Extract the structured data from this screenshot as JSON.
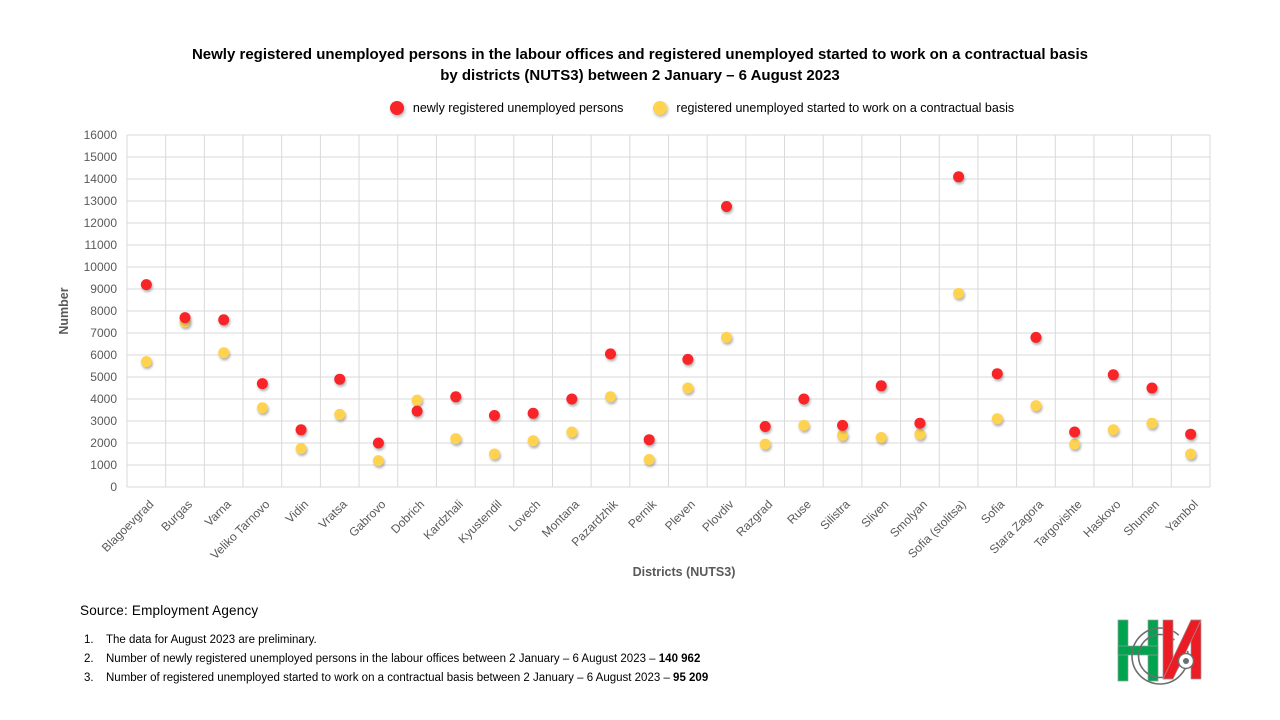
{
  "title": {
    "line1": "Newly registered unemployed persons in the labour offices and registered unemployed started to work on a contractual basis",
    "line2": "by districts (NUTS3) between 2 January – 6 August 2023"
  },
  "legend": {
    "items": [
      {
        "label": "newly registered unemployed  persons",
        "color": "#F82428"
      },
      {
        "label": "registered unemployed  started to work on  a contractual basis",
        "color": "#FFD24F"
      }
    ]
  },
  "chart_data": {
    "type": "scatter",
    "title": "Newly registered unemployed persons in the labour offices and registered unemployed started to work on a contractual basis by districts (NUTS3) between 2 January – 6 August 2023",
    "xlabel": "Districts (NUTS3)",
    "ylabel": "Number",
    "ylim": [
      0,
      16000
    ],
    "ytick_step": 1000,
    "grid": true,
    "legend_position": "top",
    "grid_color": "#D9D9D9",
    "tick_label_color": "#595959",
    "axis_title_color": "#595959",
    "categories": [
      "Blagoevgrad",
      "Burgas",
      "Varna",
      "Veliko Tarnovo",
      "Vidin",
      "Vratsa",
      "Gabrovo",
      "Dobrich",
      "Kardzhali",
      "Kyustendil",
      "Lovech",
      "Montana",
      "Pazardzhik",
      "Pernik",
      "Pleven",
      "Plovdiv",
      "Razgrad",
      "Ruse",
      "Silistra",
      "Sliven",
      "Smolyan",
      "Sofia (stolitsa)",
      "Sofia",
      "Stara Zagora",
      "Targovishte",
      "Haskovo",
      "Shumen",
      "Yambol"
    ],
    "series": [
      {
        "name": "newly registered unemployed persons",
        "color": "#F82428",
        "values": [
          9200,
          7700,
          7600,
          4700,
          2600,
          4900,
          2000,
          3450,
          4100,
          3250,
          3350,
          4000,
          6050,
          2150,
          5800,
          12750,
          2750,
          4000,
          2800,
          4600,
          2900,
          14100,
          5150,
          6800,
          2500,
          5100,
          4500,
          2400
        ]
      },
      {
        "name": "registered unemployed started to work on a contractual basis",
        "color": "#FFD24F",
        "values": [
          5700,
          7500,
          6100,
          3600,
          1750,
          3300,
          1200,
          3950,
          2200,
          1500,
          2100,
          2500,
          4100,
          1250,
          4500,
          6800,
          1950,
          2800,
          2350,
          2250,
          2400,
          8800,
          3100,
          3700,
          1950,
          2600,
          2900,
          1500
        ]
      }
    ]
  },
  "footer": {
    "source": "Source:  Employment  Agency",
    "notes": [
      {
        "num": "1.",
        "text": "The data for August 2023 are preliminary.",
        "bold": ""
      },
      {
        "num": "2.",
        "text": "Number  of newly registered unemployed  persons in the  labour offices between  2 January – 6 August 2023 – ",
        "bold": "140 962"
      },
      {
        "num": "3.",
        "text": "Number  of registered unemployed  started to work on a contractual basis between  2 January – 6 August 2023 – ",
        "bold": "95 209"
      }
    ]
  },
  "logo": {
    "name": "NSI (National Statistical Institute) logo",
    "green": "#00A44F",
    "red": "#EC1C24",
    "ring": "#6D6E71"
  }
}
